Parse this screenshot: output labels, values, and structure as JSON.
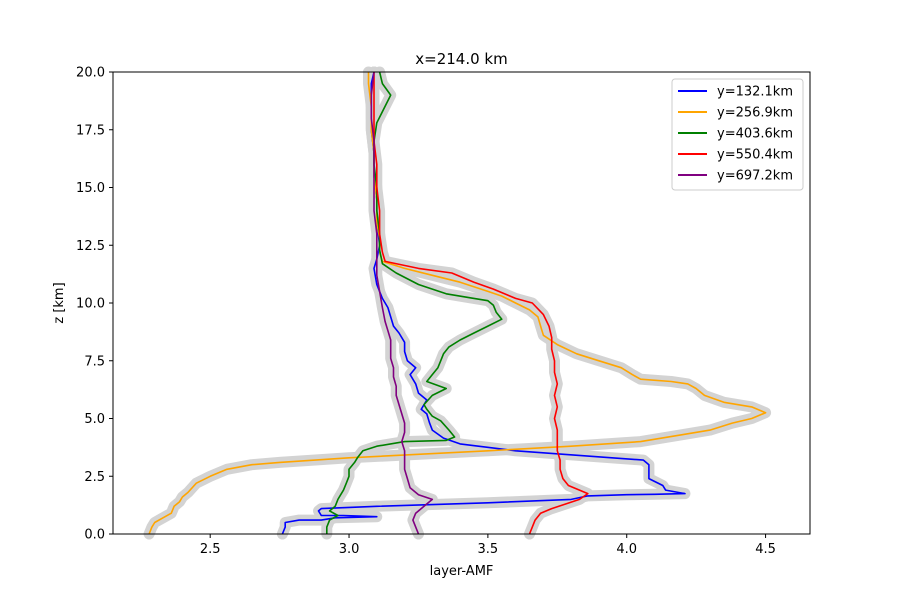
{
  "chart_data": {
    "type": "line",
    "title": "x=214.0 km",
    "xlabel": "layer-AMF",
    "ylabel": "z [km]",
    "xlim": [
      2.15,
      4.66
    ],
    "ylim": [
      0,
      20
    ],
    "xticks": [
      2.5,
      3.0,
      3.5,
      4.0,
      4.5
    ],
    "xtick_labels": [
      "2.5",
      "3.0",
      "3.5",
      "4.0",
      "4.5"
    ],
    "yticks": [
      0,
      2.5,
      5,
      7.5,
      10,
      12.5,
      15,
      17.5,
      20
    ],
    "ytick_labels": [
      "0.0",
      "2.5",
      "5.0",
      "7.5",
      "10.0",
      "12.5",
      "15.0",
      "17.5",
      "20.0"
    ],
    "grid": false,
    "legend_position": "top-right",
    "uncertainty_band_color": "#d3d3d3",
    "series": [
      {
        "name": "y=132.1km",
        "color": "#0000ff",
        "points": [
          [
            2.76,
            0.0
          ],
          [
            2.77,
            0.3
          ],
          [
            2.77,
            0.5
          ],
          [
            2.82,
            0.6
          ],
          [
            2.9,
            0.6
          ],
          [
            2.95,
            0.7
          ],
          [
            3.1,
            0.75
          ],
          [
            2.98,
            0.8
          ],
          [
            2.9,
            0.8
          ],
          [
            2.89,
            1.0
          ],
          [
            2.9,
            1.1
          ],
          [
            3.1,
            1.2
          ],
          [
            3.5,
            1.35
          ],
          [
            3.8,
            1.5
          ],
          [
            3.86,
            1.65
          ],
          [
            4.0,
            1.7
          ],
          [
            4.1,
            1.72
          ],
          [
            4.21,
            1.75
          ],
          [
            4.14,
            1.9
          ],
          [
            4.13,
            2.1
          ],
          [
            4.08,
            2.4
          ],
          [
            4.08,
            3.0
          ],
          [
            4.06,
            3.2
          ],
          [
            3.6,
            3.6
          ],
          [
            3.4,
            3.9
          ],
          [
            3.34,
            4.15
          ],
          [
            3.3,
            4.5
          ],
          [
            3.29,
            4.8
          ],
          [
            3.28,
            5.2
          ],
          [
            3.26,
            5.4
          ],
          [
            3.28,
            5.8
          ],
          [
            3.25,
            6.1
          ],
          [
            3.24,
            6.5
          ],
          [
            3.22,
            6.9
          ],
          [
            3.24,
            7.2
          ],
          [
            3.21,
            7.5
          ],
          [
            3.2,
            7.9
          ],
          [
            3.2,
            8.3
          ],
          [
            3.18,
            8.7
          ],
          [
            3.16,
            9.0
          ],
          [
            3.15,
            9.4
          ],
          [
            3.14,
            9.8
          ],
          [
            3.12,
            10.2
          ],
          [
            3.1,
            10.8
          ],
          [
            3.09,
            11.5
          ],
          [
            3.1,
            11.9
          ],
          [
            3.11,
            12.5
          ],
          [
            3.1,
            13.5
          ],
          [
            3.1,
            14.5
          ],
          [
            3.09,
            15.5
          ],
          [
            3.09,
            16.5
          ],
          [
            3.08,
            17.5
          ],
          [
            3.08,
            18.5
          ],
          [
            3.08,
            19.5
          ],
          [
            3.09,
            20.0
          ]
        ]
      },
      {
        "name": "y=256.9km",
        "color": "#ffa500",
        "points": [
          [
            2.28,
            0.0
          ],
          [
            2.29,
            0.3
          ],
          [
            2.3,
            0.5
          ],
          [
            2.33,
            0.7
          ],
          [
            2.36,
            0.9
          ],
          [
            2.37,
            1.2
          ],
          [
            2.39,
            1.4
          ],
          [
            2.4,
            1.6
          ],
          [
            2.42,
            1.8
          ],
          [
            2.45,
            2.2
          ],
          [
            2.5,
            2.5
          ],
          [
            2.56,
            2.8
          ],
          [
            2.65,
            3.0
          ],
          [
            2.75,
            3.1
          ],
          [
            3.0,
            3.3
          ],
          [
            3.5,
            3.6
          ],
          [
            3.8,
            3.8
          ],
          [
            4.05,
            4.0
          ],
          [
            4.2,
            4.3
          ],
          [
            4.3,
            4.5
          ],
          [
            4.38,
            4.8
          ],
          [
            4.45,
            5.0
          ],
          [
            4.5,
            5.25
          ],
          [
            4.45,
            5.5
          ],
          [
            4.35,
            5.7
          ],
          [
            4.28,
            6.0
          ],
          [
            4.25,
            6.3
          ],
          [
            4.22,
            6.5
          ],
          [
            4.16,
            6.6
          ],
          [
            4.05,
            6.7
          ],
          [
            4.02,
            6.9
          ],
          [
            3.98,
            7.2
          ],
          [
            3.9,
            7.5
          ],
          [
            3.82,
            7.8
          ],
          [
            3.75,
            8.2
          ],
          [
            3.7,
            8.6
          ],
          [
            3.69,
            9.0
          ],
          [
            3.68,
            9.4
          ],
          [
            3.65,
            9.7
          ],
          [
            3.6,
            10.0
          ],
          [
            3.55,
            10.3
          ],
          [
            3.5,
            10.5
          ],
          [
            3.4,
            10.9
          ],
          [
            3.3,
            11.2
          ],
          [
            3.2,
            11.5
          ],
          [
            3.12,
            11.8
          ],
          [
            3.11,
            12.2
          ],
          [
            3.11,
            12.8
          ],
          [
            3.1,
            13.5
          ],
          [
            3.1,
            14.5
          ],
          [
            3.09,
            15.5
          ],
          [
            3.09,
            16.5
          ],
          [
            3.08,
            17.5
          ],
          [
            3.08,
            18.5
          ],
          [
            3.07,
            19.5
          ],
          [
            3.07,
            20.0
          ]
        ]
      },
      {
        "name": "y=403.6km",
        "color": "#008000",
        "points": [
          [
            2.92,
            0.0
          ],
          [
            2.92,
            0.3
          ],
          [
            2.93,
            0.6
          ],
          [
            2.96,
            0.8
          ],
          [
            2.93,
            1.0
          ],
          [
            2.95,
            1.2
          ],
          [
            2.96,
            1.5
          ],
          [
            2.97,
            1.7
          ],
          [
            2.98,
            1.9
          ],
          [
            2.99,
            2.2
          ],
          [
            3.0,
            2.5
          ],
          [
            3.0,
            2.8
          ],
          [
            3.02,
            3.1
          ],
          [
            3.03,
            3.3
          ],
          [
            3.05,
            3.6
          ],
          [
            3.1,
            3.8
          ],
          [
            3.2,
            4.0
          ],
          [
            3.35,
            4.05
          ],
          [
            3.38,
            4.2
          ],
          [
            3.36,
            4.5
          ],
          [
            3.33,
            4.9
          ],
          [
            3.3,
            5.1
          ],
          [
            3.28,
            5.4
          ],
          [
            3.27,
            5.6
          ],
          [
            3.3,
            6.0
          ],
          [
            3.35,
            6.3
          ],
          [
            3.28,
            6.6
          ],
          [
            3.3,
            6.9
          ],
          [
            3.32,
            7.2
          ],
          [
            3.33,
            7.5
          ],
          [
            3.34,
            7.8
          ],
          [
            3.36,
            8.1
          ],
          [
            3.4,
            8.4
          ],
          [
            3.45,
            8.7
          ],
          [
            3.5,
            9.0
          ],
          [
            3.55,
            9.3
          ],
          [
            3.53,
            9.6
          ],
          [
            3.52,
            9.9
          ],
          [
            3.5,
            10.1
          ],
          [
            3.45,
            10.2
          ],
          [
            3.35,
            10.4
          ],
          [
            3.25,
            10.8
          ],
          [
            3.17,
            11.3
          ],
          [
            3.12,
            11.7
          ],
          [
            3.11,
            12.3
          ],
          [
            3.11,
            13.0
          ],
          [
            3.1,
            14.0
          ],
          [
            3.1,
            15.0
          ],
          [
            3.09,
            16.0
          ],
          [
            3.09,
            17.0
          ],
          [
            3.1,
            17.8
          ],
          [
            3.15,
            19.0
          ],
          [
            3.12,
            19.5
          ],
          [
            3.11,
            20.0
          ]
        ]
      },
      {
        "name": "y=550.4km",
        "color": "#ff0000",
        "points": [
          [
            3.65,
            0.0
          ],
          [
            3.66,
            0.3
          ],
          [
            3.67,
            0.6
          ],
          [
            3.69,
            0.9
          ],
          [
            3.73,
            1.1
          ],
          [
            3.78,
            1.3
          ],
          [
            3.83,
            1.5
          ],
          [
            3.86,
            1.75
          ],
          [
            3.83,
            1.9
          ],
          [
            3.79,
            2.1
          ],
          [
            3.77,
            2.4
          ],
          [
            3.76,
            2.8
          ],
          [
            3.76,
            3.2
          ],
          [
            3.75,
            3.6
          ],
          [
            3.75,
            4.0
          ],
          [
            3.75,
            4.5
          ],
          [
            3.74,
            5.0
          ],
          [
            3.75,
            5.5
          ],
          [
            3.74,
            6.0
          ],
          [
            3.75,
            6.5
          ],
          [
            3.74,
            7.0
          ],
          [
            3.74,
            7.5
          ],
          [
            3.73,
            8.0
          ],
          [
            3.73,
            8.5
          ],
          [
            3.72,
            9.0
          ],
          [
            3.7,
            9.5
          ],
          [
            3.66,
            10.0
          ],
          [
            3.6,
            10.2
          ],
          [
            3.52,
            10.6
          ],
          [
            3.45,
            10.9
          ],
          [
            3.37,
            11.3
          ],
          [
            3.25,
            11.5
          ],
          [
            3.13,
            11.8
          ],
          [
            3.12,
            12.2
          ],
          [
            3.11,
            13.0
          ],
          [
            3.11,
            14.0
          ],
          [
            3.1,
            15.0
          ],
          [
            3.1,
            16.0
          ],
          [
            3.09,
            17.0
          ],
          [
            3.09,
            18.0
          ],
          [
            3.09,
            19.0
          ],
          [
            3.09,
            20.0
          ]
        ]
      },
      {
        "name": "y=697.2km",
        "color": "#800080",
        "points": [
          [
            3.25,
            0.0
          ],
          [
            3.24,
            0.3
          ],
          [
            3.23,
            0.6
          ],
          [
            3.24,
            0.9
          ],
          [
            3.27,
            1.2
          ],
          [
            3.3,
            1.5
          ],
          [
            3.25,
            1.7
          ],
          [
            3.22,
            2.0
          ],
          [
            3.21,
            2.4
          ],
          [
            3.2,
            2.8
          ],
          [
            3.2,
            3.2
          ],
          [
            3.2,
            3.6
          ],
          [
            3.19,
            4.0
          ],
          [
            3.2,
            4.4
          ],
          [
            3.2,
            4.8
          ],
          [
            3.19,
            5.2
          ],
          [
            3.18,
            5.6
          ],
          [
            3.17,
            6.0
          ],
          [
            3.17,
            6.4
          ],
          [
            3.16,
            6.8
          ],
          [
            3.16,
            7.2
          ],
          [
            3.15,
            7.6
          ],
          [
            3.15,
            8.0
          ],
          [
            3.15,
            8.4
          ],
          [
            3.14,
            8.8
          ],
          [
            3.13,
            9.2
          ],
          [
            3.12,
            9.8
          ],
          [
            3.11,
            10.5
          ],
          [
            3.1,
            11.2
          ],
          [
            3.1,
            12.0
          ],
          [
            3.1,
            13.0
          ],
          [
            3.09,
            14.0
          ],
          [
            3.09,
            15.0
          ],
          [
            3.09,
            16.0
          ],
          [
            3.09,
            17.0
          ],
          [
            3.08,
            18.0
          ],
          [
            3.08,
            19.0
          ],
          [
            3.09,
            20.0
          ]
        ]
      }
    ]
  }
}
